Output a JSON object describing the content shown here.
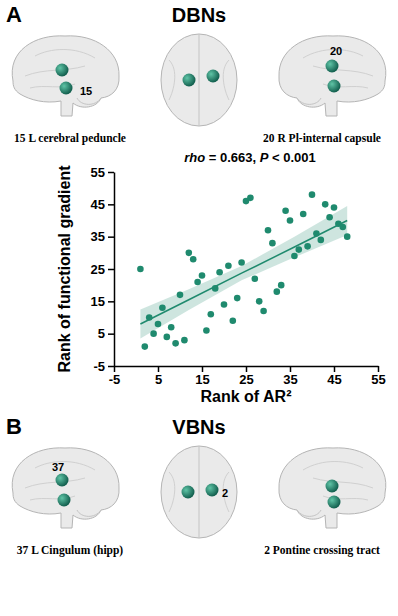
{
  "panels": [
    {
      "letter": "A",
      "title": "DBNs",
      "nodes": [
        "15",
        "20"
      ],
      "captions": [
        "15 L cerebral peduncle",
        "20 R Pl-internal capsule"
      ]
    },
    {
      "letter": "B",
      "title": "VBNs",
      "nodes": [
        "37",
        "2"
      ],
      "captions": [
        "37 L Cingulum (hipp)",
        "2 Pontine crossing tract"
      ]
    }
  ],
  "chart_data": {
    "type": "scatter",
    "title": "rho = 0.663, P < 0.001",
    "xlabel": "Rank of AR²",
    "ylabel": "Rank of functional gradient",
    "x": [
      1,
      2,
      3,
      4,
      5,
      6,
      7,
      8,
      9,
      10,
      11,
      12,
      13,
      14,
      15,
      16,
      17,
      18,
      19,
      20,
      21,
      22,
      23,
      24,
      25,
      26,
      27,
      28,
      29,
      30,
      31,
      32,
      33,
      34,
      35,
      36,
      37,
      38,
      39,
      40,
      41,
      42,
      43,
      44,
      45,
      46,
      47,
      48
    ],
    "y": [
      25,
      1,
      10,
      5,
      8,
      13,
      4,
      7,
      2,
      17,
      3,
      30,
      28,
      21,
      23,
      6,
      11,
      19,
      24,
      14,
      26,
      9,
      16,
      27,
      46,
      47,
      22,
      15,
      12,
      37,
      33,
      18,
      20,
      43,
      40,
      29,
      31,
      42,
      32,
      48,
      36,
      34,
      45,
      41,
      44,
      39,
      38,
      35
    ],
    "fit_x": [
      1,
      12,
      24,
      36,
      48
    ],
    "fit_y": [
      8,
      15.5,
      23.7,
      31.8,
      40
    ],
    "ci_lower": [
      3.5,
      12.3,
      21.5,
      28.6,
      35.5
    ],
    "ci_upper": [
      12.5,
      18.7,
      25.9,
      35,
      44.5
    ],
    "xlim": [
      -5,
      55
    ],
    "ylim": [
      -5,
      55
    ],
    "xticks": [
      -5,
      5,
      15,
      25,
      35,
      45,
      55
    ],
    "yticks": [
      -5,
      5,
      15,
      25,
      35,
      45,
      55
    ],
    "color": "#1f8a6e",
    "grid": false
  }
}
